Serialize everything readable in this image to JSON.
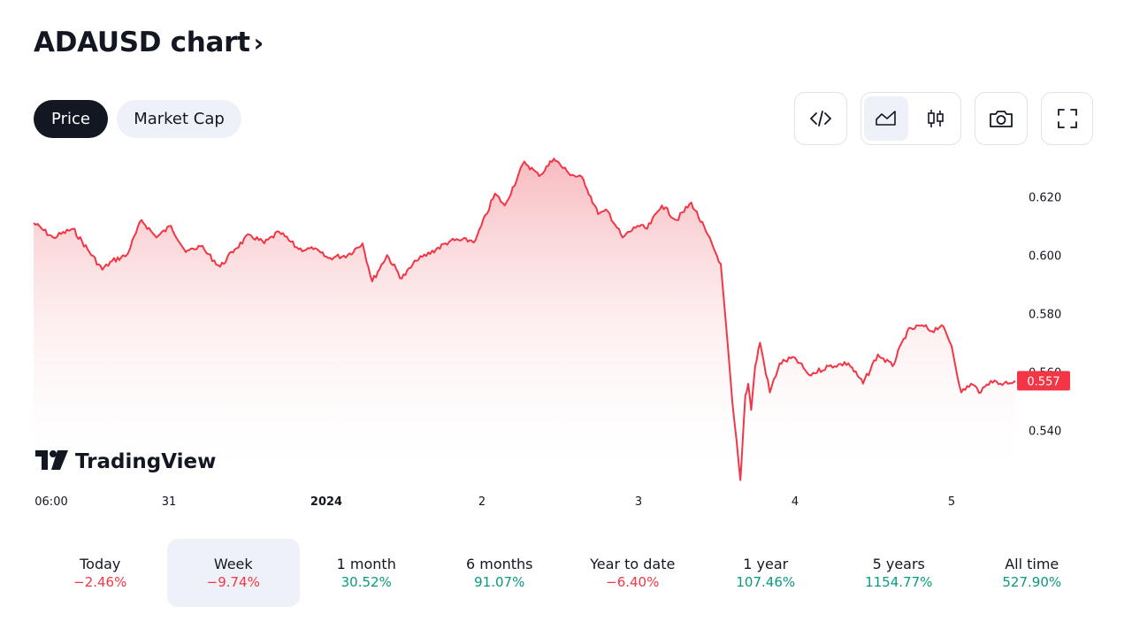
{
  "header": {
    "title": "ADAUSD chart",
    "chevron": "›"
  },
  "tabs": [
    {
      "label": "Price",
      "active": true
    },
    {
      "label": "Market Cap",
      "active": false
    }
  ],
  "toolbar": {
    "embed_icon": "code-icon",
    "area_icon": "area-chart-icon",
    "candle_icon": "candlestick-icon",
    "snapshot_icon": "camera-icon",
    "fullscreen_icon": "fullscreen-icon"
  },
  "colors": {
    "line": "#f23645",
    "fill_top": "#f7b3b8",
    "negative": "#f23645",
    "positive": "#089981",
    "text": "#131722"
  },
  "chart_data": {
    "type": "area",
    "ylim": [
      0.522,
      0.634
    ],
    "yticks": [
      "0.620",
      "0.600",
      "0.580",
      "0.560",
      "0.540"
    ],
    "xticks": [
      {
        "label": "06:00",
        "bold": false
      },
      {
        "label": "31",
        "bold": false
      },
      {
        "label": "2024",
        "bold": true
      },
      {
        "label": "2",
        "bold": false
      },
      {
        "label": "3",
        "bold": false
      },
      {
        "label": "4",
        "bold": false
      },
      {
        "label": "5",
        "bold": false
      }
    ],
    "last_value": "0.557",
    "watermark": "TradingView",
    "x": [
      0,
      0.02,
      0.04,
      0.055,
      0.07,
      0.08,
      0.095,
      0.11,
      0.125,
      0.14,
      0.155,
      0.17,
      0.19,
      0.205,
      0.22,
      0.235,
      0.25,
      0.27,
      0.285,
      0.3,
      0.32,
      0.335,
      0.345,
      0.36,
      0.375,
      0.39,
      0.41,
      0.425,
      0.45,
      0.47,
      0.48,
      0.5,
      0.515,
      0.53,
      0.545,
      0.56,
      0.575,
      0.585,
      0.6,
      0.615,
      0.625,
      0.64,
      0.655,
      0.67,
      0.685,
      0.7,
      0.712,
      0.72,
      0.725,
      0.728,
      0.731,
      0.735,
      0.74,
      0.75,
      0.76,
      0.775,
      0.79,
      0.81,
      0.83,
      0.845,
      0.86,
      0.875,
      0.89,
      0.905,
      0.915,
      0.925,
      0.935,
      0.945,
      0.955,
      0.965,
      0.975,
      0.985,
      1.0
    ],
    "y": [
      0.611,
      0.606,
      0.609,
      0.602,
      0.595,
      0.598,
      0.6,
      0.612,
      0.606,
      0.61,
      0.601,
      0.603,
      0.596,
      0.602,
      0.607,
      0.604,
      0.608,
      0.602,
      0.602,
      0.599,
      0.6,
      0.604,
      0.591,
      0.6,
      0.592,
      0.598,
      0.602,
      0.605,
      0.605,
      0.621,
      0.617,
      0.632,
      0.627,
      0.633,
      0.628,
      0.626,
      0.614,
      0.615,
      0.606,
      0.61,
      0.609,
      0.617,
      0.612,
      0.618,
      0.608,
      0.597,
      0.549,
      0.523,
      0.552,
      0.556,
      0.547,
      0.562,
      0.57,
      0.553,
      0.563,
      0.565,
      0.559,
      0.562,
      0.563,
      0.556,
      0.566,
      0.562,
      0.574,
      0.576,
      0.574,
      0.576,
      0.569,
      0.553,
      0.556,
      0.553,
      0.557,
      0.556,
      0.557
    ]
  },
  "stats": [
    {
      "label": "Today",
      "value": "−2.46%",
      "dir": "neg",
      "selected": false
    },
    {
      "label": "Week",
      "value": "−9.74%",
      "dir": "neg",
      "selected": true
    },
    {
      "label": "1 month",
      "value": "30.52%",
      "dir": "pos",
      "selected": false
    },
    {
      "label": "6 months",
      "value": "91.07%",
      "dir": "pos",
      "selected": false
    },
    {
      "label": "Year to date",
      "value": "−6.40%",
      "dir": "neg",
      "selected": false
    },
    {
      "label": "1 year",
      "value": "107.46%",
      "dir": "pos",
      "selected": false
    },
    {
      "label": "5 years",
      "value": "1154.77%",
      "dir": "pos",
      "selected": false
    },
    {
      "label": "All time",
      "value": "527.90%",
      "dir": "pos",
      "selected": false
    }
  ]
}
